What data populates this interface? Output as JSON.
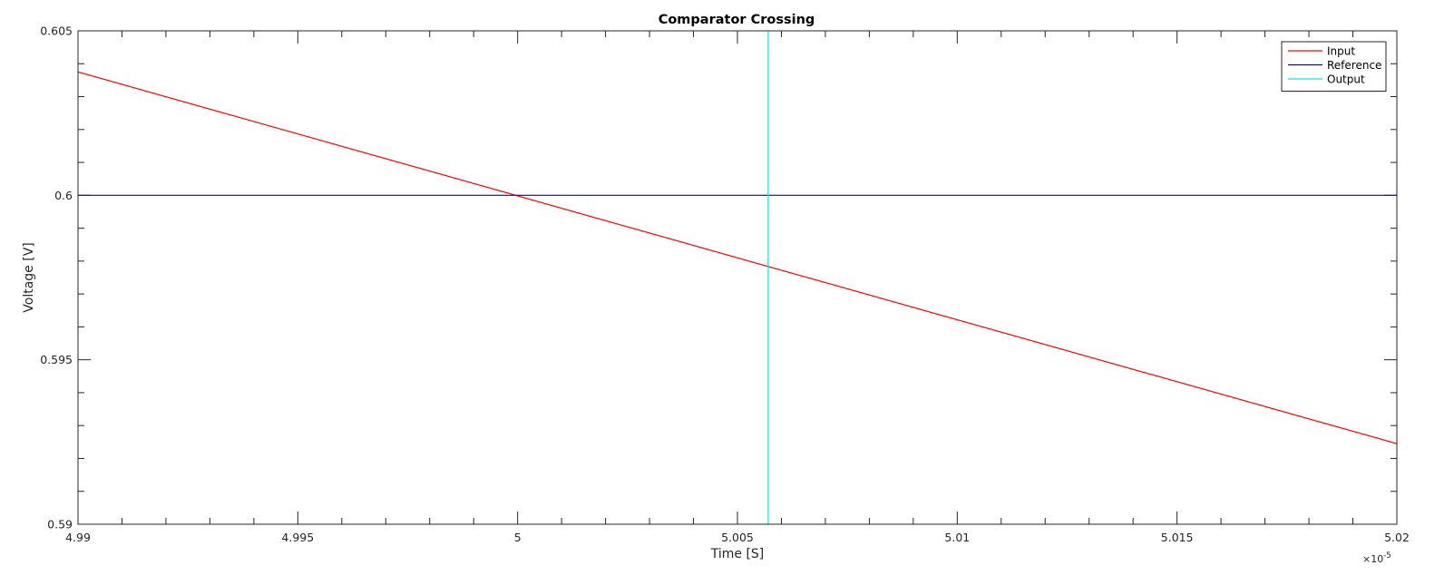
{
  "chart_data": {
    "type": "line",
    "title": "Comparator Crossing",
    "xlabel": "Time [S]",
    "ylabel": "Voltage [V]",
    "x_exponent_label": "×10",
    "x_exponent": "-5",
    "xlim": [
      4.99,
      5.02
    ],
    "ylim": [
      0.59,
      0.605
    ],
    "x_ticks": [
      4.99,
      4.995,
      5,
      5.005,
      5.01,
      5.015,
      5.02
    ],
    "x_tick_labels": [
      "4.99",
      "4.995",
      "5",
      "5.005",
      "5.01",
      "5.015",
      "5.02"
    ],
    "y_ticks": [
      0.59,
      0.595,
      0.6,
      0.605
    ],
    "y_tick_labels": [
      "0.59",
      "0.595",
      "0.6",
      "0.605"
    ],
    "grid": false,
    "legend_position": "top-right",
    "series": [
      {
        "name": "Input",
        "color": "#ff0000",
        "x": [
          4.99,
          5.02
        ],
        "y": [
          0.60375,
          0.59245
        ]
      },
      {
        "name": "Reference",
        "color": "#0000ff",
        "x": [
          4.99,
          5.02
        ],
        "y": [
          0.6,
          0.6
        ]
      },
      {
        "name": "Output",
        "color": "#00e5ee",
        "x": [
          5.0057,
          5.0057
        ],
        "y": [
          0.59,
          0.605
        ]
      }
    ]
  }
}
